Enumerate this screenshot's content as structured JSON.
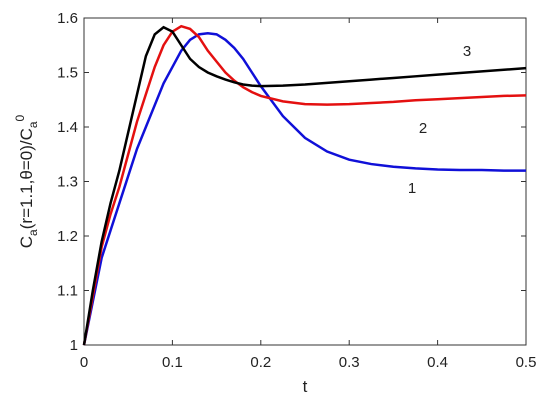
{
  "chart_data": {
    "type": "line",
    "xlabel": "t",
    "ylabel": [
      "C",
      "a",
      "(r=1.1,θ=0)/C",
      "a",
      "0"
    ],
    "x": [
      0,
      0.01,
      0.02,
      0.03,
      0.04,
      0.05,
      0.06,
      0.07,
      0.08,
      0.09,
      0.1,
      0.11,
      0.12,
      0.13,
      0.14,
      0.15,
      0.16,
      0.17,
      0.18,
      0.19,
      0.2,
      0.225,
      0.25,
      0.275,
      0.3,
      0.325,
      0.35,
      0.375,
      0.4,
      0.425,
      0.45,
      0.475,
      0.5
    ],
    "series": [
      {
        "name": "1",
        "color": "#1010d8",
        "values": [
          1,
          1.08,
          1.16,
          1.21,
          1.26,
          1.31,
          1.36,
          1.4,
          1.44,
          1.48,
          1.51,
          1.54,
          1.56,
          1.57,
          1.572,
          1.57,
          1.56,
          1.545,
          1.525,
          1.5,
          1.475,
          1.42,
          1.38,
          1.355,
          1.34,
          1.332,
          1.327,
          1.324,
          1.322,
          1.321,
          1.321,
          1.32,
          1.32
        ]
      },
      {
        "name": "2",
        "color": "#e41010",
        "values": [
          1,
          1.09,
          1.18,
          1.24,
          1.29,
          1.35,
          1.41,
          1.46,
          1.51,
          1.55,
          1.575,
          1.585,
          1.58,
          1.565,
          1.54,
          1.52,
          1.5,
          1.485,
          1.473,
          1.464,
          1.457,
          1.447,
          1.442,
          1.441,
          1.442,
          1.444,
          1.446,
          1.449,
          1.451,
          1.453,
          1.455,
          1.457,
          1.458
        ]
      },
      {
        "name": "3",
        "color": "#000000",
        "values": [
          1,
          1.1,
          1.19,
          1.26,
          1.32,
          1.39,
          1.46,
          1.53,
          1.57,
          1.583,
          1.575,
          1.55,
          1.525,
          1.51,
          1.5,
          1.493,
          1.487,
          1.482,
          1.478,
          1.476,
          1.475,
          1.476,
          1.478,
          1.481,
          1.484,
          1.487,
          1.49,
          1.493,
          1.496,
          1.499,
          1.502,
          1.505,
          1.508
        ]
      }
    ],
    "xlim": [
      0,
      0.5
    ],
    "xticks": [
      0,
      0.1,
      0.2,
      0.3,
      0.4,
      0.5
    ],
    "ylim": [
      1,
      1.6
    ],
    "yticks": [
      1,
      1.1,
      1.2,
      1.3,
      1.4,
      1.5,
      1.6
    ]
  }
}
